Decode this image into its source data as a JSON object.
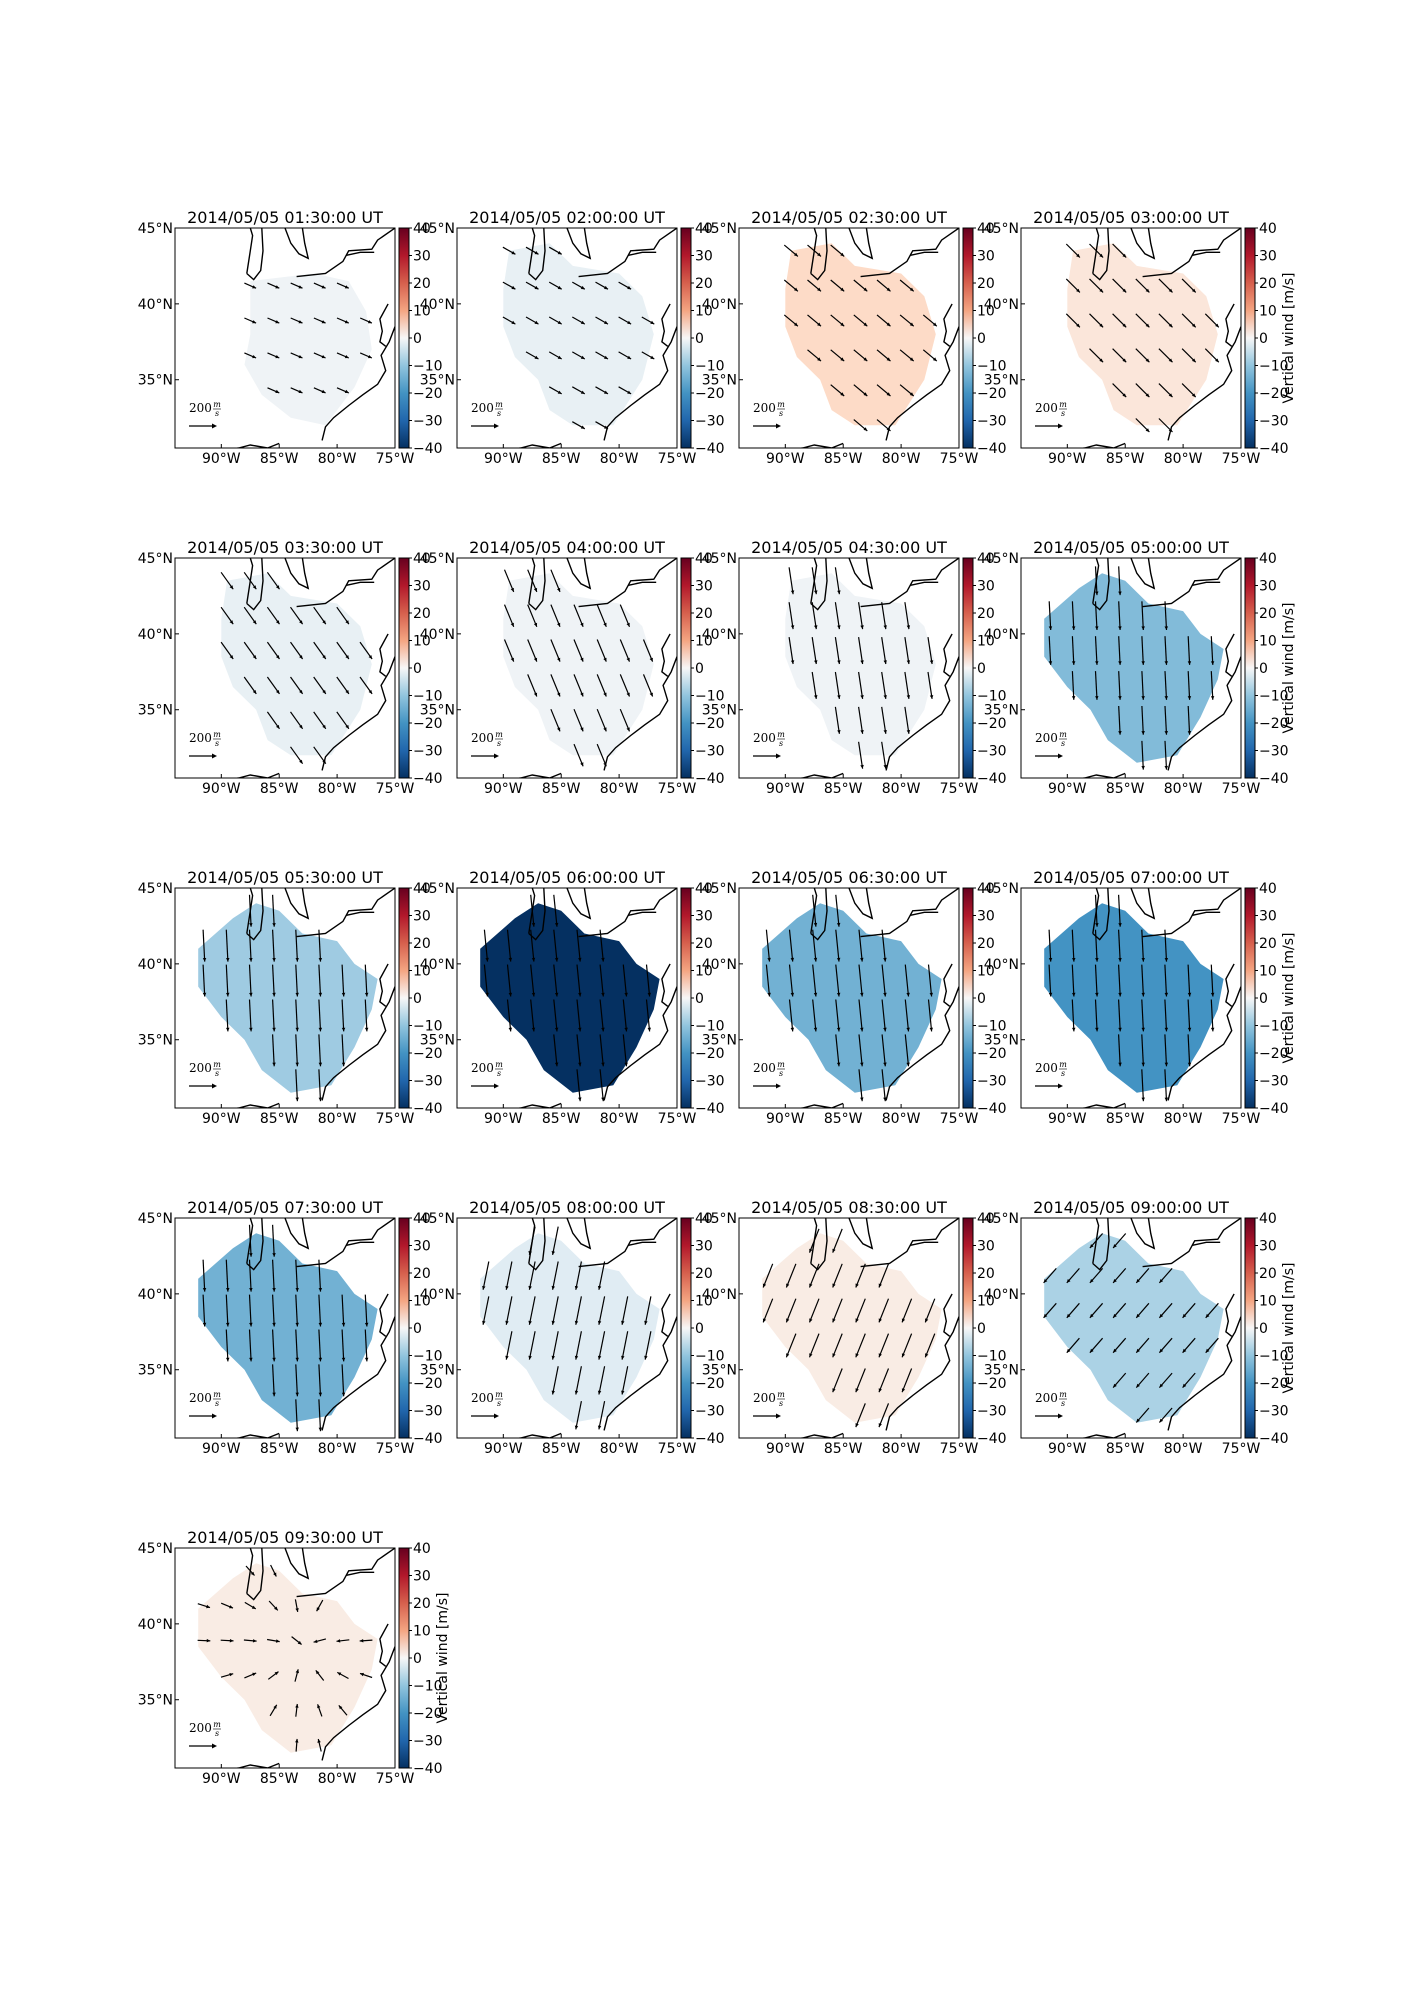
{
  "figure": {
    "colorbar": {
      "label": "Vertical wind [m/s]",
      "ticks": [
        "40",
        "30",
        "20",
        "10",
        "0",
        "−10",
        "−20",
        "−30",
        "−40"
      ],
      "range": [
        -40,
        40
      ],
      "cmap": "RdBu_r",
      "colors": {
        "neg": "#053061",
        "mid": "#f7f7f7",
        "pos": "#67001f"
      }
    },
    "map": {
      "lon_range": [
        -94,
        -75
      ],
      "lat_range": [
        30.5,
        45
      ],
      "x_ticks": [
        "90°W",
        "85°W",
        "80°W",
        "75°W"
      ],
      "y_ticks": [
        "45°N",
        "40°N",
        "35°N"
      ],
      "reference_arrow": {
        "value": "200",
        "unit_num": "m",
        "unit_den": "s"
      }
    },
    "panels": [
      {
        "title": "2014/05/05 01:30:00 UT",
        "vertical_wind": -1,
        "region": "small",
        "arrow_dir": [
          0.7,
          0.3
        ],
        "arrow_len": 0.4,
        "colorbar_label_shown": false
      },
      {
        "title": "2014/05/05 02:00:00 UT",
        "vertical_wind": -2,
        "region": "large",
        "arrow_dir": [
          0.7,
          0.4
        ],
        "arrow_len": 0.45,
        "colorbar_label_shown": false
      },
      {
        "title": "2014/05/05 02:30:00 UT",
        "vertical_wind": 5,
        "region": "large",
        "arrow_dir": [
          0.6,
          0.5
        ],
        "arrow_len": 0.55,
        "colorbar_label_shown": false
      },
      {
        "title": "2014/05/05 03:00:00 UT",
        "vertical_wind": 3,
        "region": "large",
        "arrow_dir": [
          0.6,
          0.6
        ],
        "arrow_len": 0.6,
        "colorbar_label_shown": true
      },
      {
        "title": "2014/05/05 03:30:00 UT",
        "vertical_wind": -2,
        "region": "large",
        "arrow_dir": [
          0.5,
          0.7
        ],
        "arrow_len": 0.65,
        "colorbar_label_shown": false
      },
      {
        "title": "2014/05/05 04:00:00 UT",
        "vertical_wind": -1,
        "region": "large",
        "arrow_dir": [
          0.35,
          0.85
        ],
        "arrow_len": 0.75,
        "colorbar_label_shown": false
      },
      {
        "title": "2014/05/05 04:30:00 UT",
        "vertical_wind": -1,
        "region": "large",
        "arrow_dir": [
          0.15,
          1.0
        ],
        "arrow_len": 0.85,
        "colorbar_label_shown": false
      },
      {
        "title": "2014/05/05 05:00:00 UT",
        "vertical_wind": -12,
        "region": "full",
        "arrow_dir": [
          0.05,
          1.0
        ],
        "arrow_len": 0.9,
        "colorbar_label_shown": true
      },
      {
        "title": "2014/05/05 05:30:00 UT",
        "vertical_wind": -9,
        "region": "full",
        "arrow_dir": [
          0.05,
          1.0
        ],
        "arrow_len": 1.0,
        "colorbar_label_shown": false
      },
      {
        "title": "2014/05/05 06:00:00 UT",
        "vertical_wind": -40,
        "region": "full",
        "arrow_dir": [
          0.1,
          1.0
        ],
        "arrow_len": 1.0,
        "colorbar_label_shown": false
      },
      {
        "title": "2014/05/05 06:30:00 UT",
        "vertical_wind": -14,
        "region": "full",
        "arrow_dir": [
          0.1,
          1.0
        ],
        "arrow_len": 1.0,
        "colorbar_label_shown": false
      },
      {
        "title": "2014/05/05 07:00:00 UT",
        "vertical_wind": -20,
        "region": "full",
        "arrow_dir": [
          0.05,
          1.0
        ],
        "arrow_len": 1.0,
        "colorbar_label_shown": true
      },
      {
        "title": "2014/05/05 07:30:00 UT",
        "vertical_wind": -14,
        "region": "full",
        "arrow_dir": [
          0.05,
          1.0
        ],
        "arrow_len": 1.0,
        "colorbar_label_shown": false
      },
      {
        "title": "2014/05/05 08:00:00 UT",
        "vertical_wind": -3,
        "region": "full",
        "arrow_dir": [
          -0.2,
          1.0
        ],
        "arrow_len": 0.9,
        "colorbar_label_shown": false
      },
      {
        "title": "2014/05/05 08:30:00 UT",
        "vertical_wind": 2,
        "region": "full",
        "arrow_dir": [
          -0.4,
          1.0
        ],
        "arrow_len": 0.8,
        "colorbar_label_shown": false
      },
      {
        "title": "2014/05/05 09:00:00 UT",
        "vertical_wind": -8,
        "region": "full",
        "arrow_dir": [
          -0.7,
          0.8
        ],
        "arrow_len": 0.6,
        "colorbar_label_shown": true
      },
      {
        "title": "2014/05/05 09:30:00 UT",
        "vertical_wind": 2,
        "region": "full",
        "arrow_dir": [
          0.0,
          0.0
        ],
        "arrow_len": 0.4,
        "colorbar_label_shown": true
      }
    ]
  }
}
